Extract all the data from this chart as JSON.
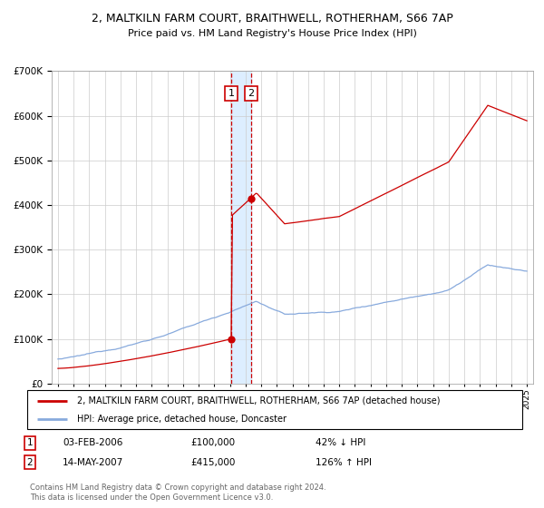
{
  "title1": "2, MALTKILN FARM COURT, BRAITHWELL, ROTHERHAM, S66 7AP",
  "title2": "Price paid vs. HM Land Registry's House Price Index (HPI)",
  "red_label": "2, MALTKILN FARM COURT, BRAITHWELL, ROTHERHAM, S66 7AP (detached house)",
  "blue_label": "HPI: Average price, detached house, Doncaster",
  "transaction1_date": "03-FEB-2006",
  "transaction1_price": 100000,
  "transaction1_note": "42% ↓ HPI",
  "transaction2_date": "14-MAY-2007",
  "transaction2_price": 415000,
  "transaction2_note": "126% ↑ HPI",
  "footer": "Contains HM Land Registry data © Crown copyright and database right 2024.\nThis data is licensed under the Open Government Licence v3.0.",
  "ylim_max": 700000,
  "grid_color": "#cccccc",
  "red_color": "#cc0000",
  "blue_color": "#88aadd",
  "shade_color": "#ddeeff",
  "t1_year": 2006.08,
  "t2_year": 2007.37
}
